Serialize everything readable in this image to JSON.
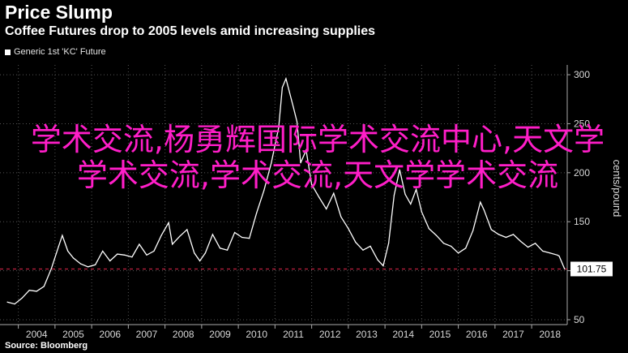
{
  "header": {
    "title": "Price Slump",
    "subtitle": "Coffee Futures drop to 2005 levels amid increasing supplies"
  },
  "source": "Source: Bloomberg",
  "overlay_text": "学术交流,杨勇辉国际学术交流中心,天文学学术交流,学术交流,天文学学术交流",
  "chart_data": {
    "type": "line",
    "series": [
      {
        "name": "Generic 1st 'KC' Future",
        "color": "#ffffff",
        "x": [
          2003.7,
          2003.9,
          2004.1,
          2004.3,
          2004.5,
          2004.7,
          2004.9,
          2005.1,
          2005.2,
          2005.35,
          2005.5,
          2005.7,
          2005.9,
          2006.1,
          2006.3,
          2006.5,
          2006.7,
          2006.9,
          2007.1,
          2007.3,
          2007.5,
          2007.7,
          2007.9,
          2008.1,
          2008.2,
          2008.4,
          2008.6,
          2008.8,
          2008.95,
          2009.1,
          2009.3,
          2009.5,
          2009.7,
          2009.9,
          2010.1,
          2010.3,
          2010.5,
          2010.7,
          2010.9,
          2011.1,
          2011.2,
          2011.3,
          2011.5,
          2011.6,
          2011.7,
          2011.85,
          2012.0,
          2012.2,
          2012.4,
          2012.6,
          2012.8,
          2013.0,
          2013.2,
          2013.4,
          2013.6,
          2013.8,
          2013.95,
          2014.1,
          2014.25,
          2014.4,
          2014.55,
          2014.7,
          2014.85,
          2015.0,
          2015.2,
          2015.4,
          2015.6,
          2015.8,
          2016.0,
          2016.2,
          2016.4,
          2016.6,
          2016.7,
          2016.9,
          2017.1,
          2017.3,
          2017.5,
          2017.7,
          2017.9,
          2018.1,
          2018.3,
          2018.5,
          2018.7,
          2018.75,
          2018.9
        ],
        "values": [
          68,
          66,
          72,
          80,
          79,
          84,
          102,
          125,
          136,
          120,
          113,
          107,
          104,
          106,
          120,
          110,
          117,
          116,
          114,
          127,
          116,
          120,
          136,
          149,
          127,
          135,
          142,
          118,
          110,
          118,
          137,
          123,
          121,
          139,
          134,
          133,
          159,
          182,
          210,
          246,
          287,
          296,
          267,
          252,
          210,
          223,
          188,
          175,
          163,
          179,
          155,
          143,
          129,
          121,
          125,
          111,
          105,
          128,
          177,
          203,
          178,
          168,
          183,
          160,
          143,
          136,
          128,
          125,
          118,
          123,
          141,
          170,
          162,
          142,
          137,
          134,
          137,
          130,
          124,
          128,
          120,
          118,
          116,
          115,
          101.75
        ]
      }
    ],
    "xlim": [
      2003.5,
      2018.97
    ],
    "ylim": [
      45,
      310
    ],
    "x_ticks": [
      "2004",
      "2005",
      "2006",
      "2007",
      "2008",
      "2009",
      "2010",
      "2011",
      "2012",
      "2013",
      "2014",
      "2015",
      "2016",
      "2017",
      "2018"
    ],
    "y_ticks": [
      50,
      100,
      150,
      200,
      250,
      300
    ],
    "y_tick_labels": [
      "50",
      "",
      "150",
      "200",
      "250",
      "300"
    ],
    "ylabel": "cents/pound",
    "last_value_label": "101.75",
    "reference_line": 101.75,
    "reference_line_color": "#c02040",
    "grid": true,
    "grid_color": "#555555",
    "legend_position": "top-left"
  }
}
